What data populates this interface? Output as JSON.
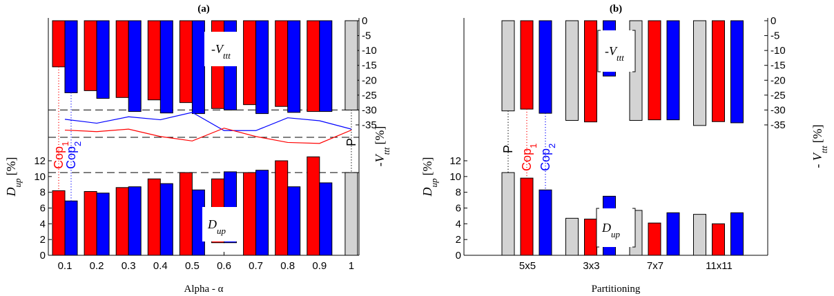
{
  "chart_data": [
    {
      "type": "bar",
      "title": "(a)",
      "xlabel": "Alpha - α",
      "ylabel_left_main": "D",
      "ylabel_left_sub": "up",
      "ylabel_left_unit": "[%]",
      "ylabel_right_main": "-V",
      "ylabel_right_sub": "ttt",
      "ylabel_right_unit": "[%]",
      "categories": [
        "0.1",
        "0.2",
        "0.3",
        "0.4",
        "0.5",
        "0.6",
        "0.7",
        "0.8",
        "0.9",
        "1"
      ],
      "dup_ticks": [
        "0",
        "2",
        "4",
        "6",
        "8",
        "10",
        "12"
      ],
      "vttt_ticks": [
        "0",
        "-5",
        "-10",
        "-15",
        "-20",
        "-25",
        "-30",
        "-35"
      ],
      "dup_ylim": [
        0,
        12
      ],
      "vttt_ylim": [
        -35,
        0
      ],
      "dup_reference": 10.5,
      "vttt_reference": -30,
      "series": [
        {
          "name": "Cop",
          "name_sub": "1",
          "color": "#ff0000",
          "dup": [
            8.2,
            8.1,
            8.6,
            9.7,
            10.5,
            9.7,
            10.5,
            12,
            12.5,
            null
          ],
          "dup_bottom": [
            0,
            0,
            0,
            0,
            0,
            1.6,
            0,
            0,
            0,
            null
          ],
          "vttt": [
            -15.5,
            -23.5,
            -25.8,
            -26.6,
            -27.5,
            -29.5,
            -28.2,
            -28.8,
            -30.5,
            null
          ]
        },
        {
          "name": "Cop",
          "name_sub": "2",
          "color": "#0000ff",
          "dup": [
            6.9,
            7.9,
            8.7,
            9.1,
            8.3,
            10.6,
            10.8,
            8.7,
            9.2,
            null
          ],
          "dup_bottom": [
            0,
            0,
            0,
            0,
            0,
            1.6,
            0,
            0,
            0,
            null
          ],
          "vttt": [
            -24.2,
            -26.1,
            -30.5,
            -31,
            -31.2,
            -30,
            -31.2,
            -30.8,
            -30.5,
            null
          ]
        },
        {
          "name": "P",
          "name_sub": "",
          "color": "#d3d3d3",
          "dup": [
            null,
            null,
            null,
            null,
            null,
            null,
            null,
            null,
            null,
            10.5
          ],
          "dup_bottom": [
            null,
            null,
            null,
            null,
            null,
            null,
            null,
            null,
            null,
            0
          ],
          "vttt": [
            null,
            null,
            null,
            null,
            null,
            null,
            null,
            null,
            null,
            -30
          ]
        }
      ],
      "mid_lines": [
        {
          "color": "#0000ff",
          "values": [
            36.8,
            37.6,
            36.3,
            36.9,
            35.4,
            39.1,
            39.1,
            36.5,
            37.1,
            38.8
          ]
        },
        {
          "color": "#ff0000",
          "values": [
            39.0,
            39.3,
            38.8,
            40.3,
            41.2,
            38.6,
            40.3,
            41.5,
            41.7,
            39.0
          ]
        }
      ],
      "annotation_top": {
        "main": "-V",
        "sub": "ttt"
      },
      "annotation_bottom": {
        "main": "D",
        "sub": "up"
      }
    },
    {
      "type": "bar",
      "title": "(b)",
      "xlabel": "Partitioning",
      "ylabel_left_main": "D",
      "ylabel_left_sub": "up",
      "ylabel_left_unit": "[%]",
      "ylabel_right_main": "- V",
      "ylabel_right_sub": "ttt",
      "ylabel_right_unit": "[%]",
      "categories": [
        "5x5",
        "3x3",
        "7x7",
        "11x11"
      ],
      "dup_ticks": [
        "0",
        "2",
        "4",
        "6",
        "8",
        "10",
        "12"
      ],
      "vttt_ticks": [
        "0",
        "-5",
        "-10",
        "-15",
        "-20",
        "-25",
        "-30",
        "-35"
      ],
      "dup_ylim": [
        0,
        12
      ],
      "vttt_ylim": [
        -35,
        0
      ],
      "series": [
        {
          "name": "P",
          "name_sub": "",
          "color": "#d3d3d3",
          "dup": [
            10.5,
            4.7,
            5.7,
            5.2
          ],
          "vttt": [
            -30.3,
            -33.5,
            -33.5,
            -35.2
          ]
        },
        {
          "name": "Cop",
          "name_sub": "1",
          "color": "#ff0000",
          "dup": [
            9.8,
            4.6,
            4.1,
            4.0
          ],
          "vttt": [
            -29.7,
            -34,
            -33.3,
            -33.9
          ]
        },
        {
          "name": "Cop",
          "name_sub": "2",
          "color": "#0000ff",
          "dup": [
            8.3,
            7.5,
            5.4,
            5.4
          ],
          "vttt": [
            -31.1,
            -18.6,
            -33.3,
            -34.3
          ]
        }
      ],
      "annotation_top": {
        "main": "-V",
        "sub": "ttt"
      },
      "annotation_bottom": {
        "main": "D",
        "sub": "up"
      }
    }
  ]
}
